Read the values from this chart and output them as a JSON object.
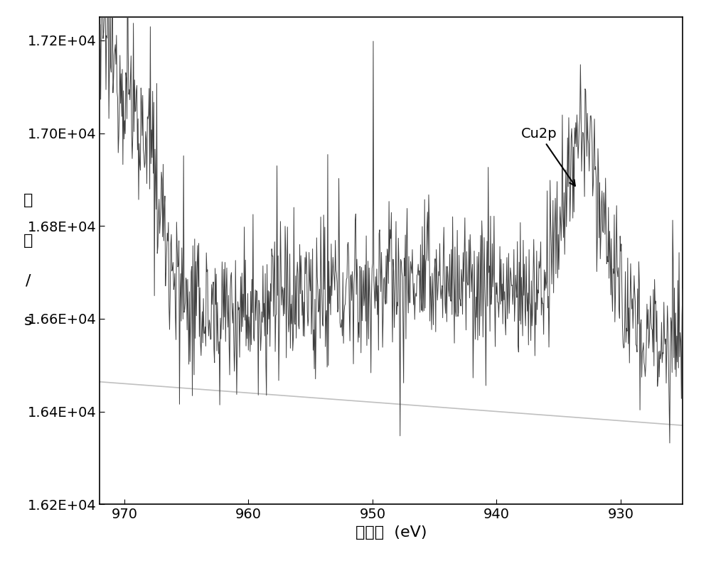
{
  "xlabel": "结合能  (eV)",
  "xlim_left": 972,
  "xlim_right": 925,
  "ylim": [
    16200,
    17250
  ],
  "yticks": [
    16200,
    16400,
    16600,
    16800,
    17000,
    17200
  ],
  "ytick_labels": [
    "1.62E+04",
    "1.64E+04",
    "1.66E+04",
    "1.68E+04",
    "1.70E+04",
    "1.72E+04"
  ],
  "xticks": [
    930,
    940,
    950,
    960,
    970
  ],
  "annotation_text": "Cu2p",
  "line_color": "#404040",
  "baseline_color": "#c0c0c0",
  "background_color": "#ffffff",
  "spine_color": "#000000",
  "seed": 12345,
  "x_start": 972,
  "x_end": 925,
  "n_points": 1000
}
